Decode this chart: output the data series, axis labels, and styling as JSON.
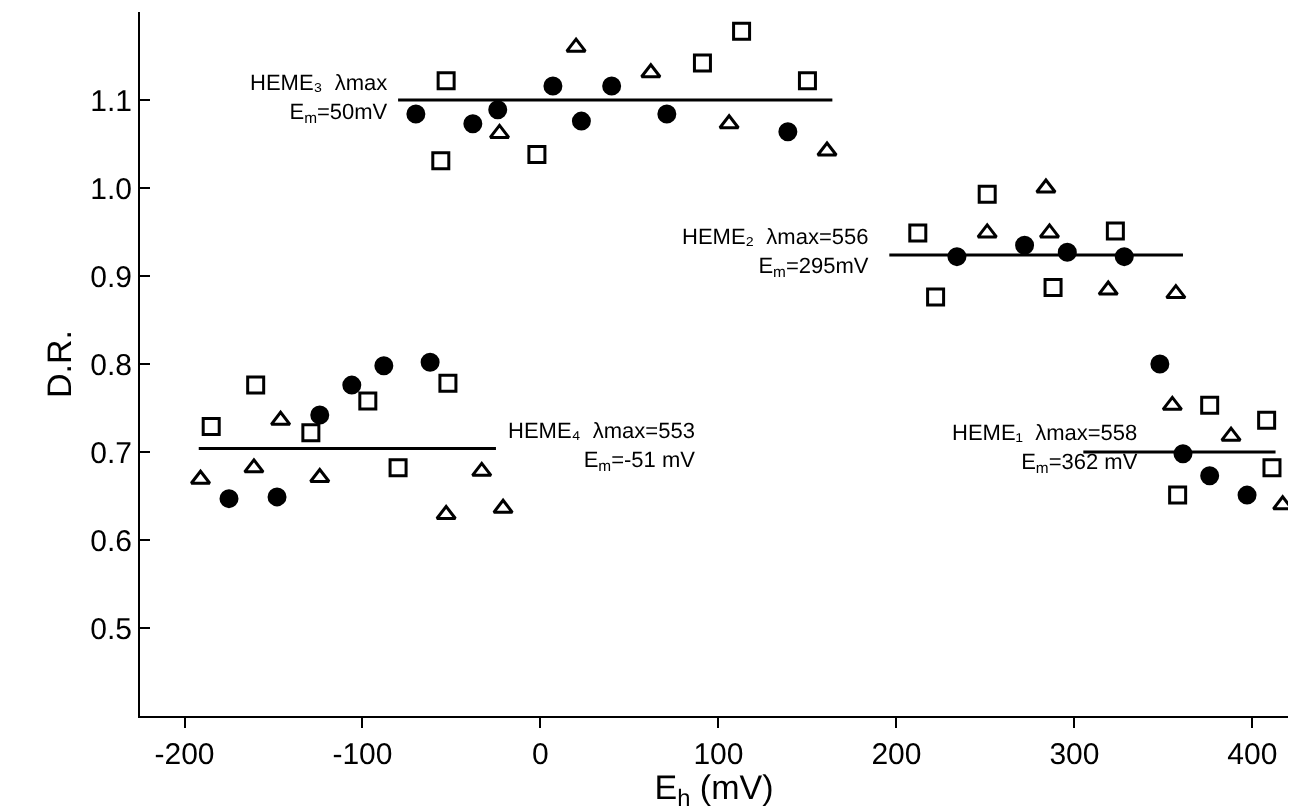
{
  "chart_data": {
    "type": "scatter",
    "xlabel": "E$_{h}$ (mV)",
    "ylabel": "D.R.",
    "xlim": [
      -225,
      420
    ],
    "xticks": [
      -200,
      -100,
      0,
      100,
      200,
      300,
      400
    ],
    "ylim": [
      0.4,
      1.2
    ],
    "yticks": [
      0.5,
      0.6,
      0.7,
      0.8,
      0.9,
      {
        "value": 1,
        "label": "1.0"
      },
      1.1
    ],
    "series": [
      {
        "marker": "circle",
        "color": "#000000",
        "x": [
          -70,
          -38,
          -24,
          7,
          23,
          40,
          71,
          139,
          234,
          272,
          296,
          328,
          348,
          361,
          376,
          397,
          -175,
          -148,
          -124,
          -106,
          -88,
          -62
        ],
        "values": [
          1.084,
          1.073,
          1.089,
          1.116,
          1.076,
          1.116,
          1.084,
          1.064,
          0.922,
          0.935,
          0.927,
          0.922,
          0.8,
          0.698,
          0.673,
          0.651,
          0.647,
          0.649,
          0.742,
          0.776,
          0.798,
          0.802
        ]
      },
      {
        "marker": "square",
        "color": "#000000",
        "x": [
          -53,
          -56,
          -2,
          91,
          113,
          150,
          212,
          222,
          251,
          288,
          323,
          376,
          408,
          411,
          358,
          -185,
          -129,
          -97,
          -80,
          -160,
          -52
        ],
        "values": [
          1.122,
          1.031,
          1.038,
          1.142,
          1.178,
          1.122,
          0.949,
          0.876,
          0.993,
          0.887,
          0.951,
          0.753,
          0.736,
          0.682,
          0.651,
          0.729,
          0.722,
          0.758,
          0.682,
          0.776,
          0.778
        ]
      },
      {
        "marker": "triangle",
        "color": "#000000",
        "x": [
          -23,
          20,
          62,
          106,
          161,
          251,
          284,
          286,
          319,
          357,
          355,
          388,
          417,
          -191,
          -161,
          -146,
          -124,
          -53,
          -33,
          -21
        ],
        "values": [
          1.062,
          1.16,
          1.131,
          1.073,
          1.042,
          0.949,
          1.0,
          0.949,
          0.884,
          0.88,
          0.753,
          0.718,
          0.64,
          0.669,
          0.682,
          0.736,
          0.671,
          0.629,
          0.678,
          0.636
        ]
      },
      {
        "type": "line",
        "marker": "none",
        "color": "#000000",
        "x": [
          -80,
          164
        ],
        "values": [
          1.1,
          1.1
        ]
      },
      {
        "type": "line",
        "marker": "none",
        "color": "#000000",
        "x": [
          196,
          361
        ],
        "values": [
          0.924,
          0.924
        ]
      },
      {
        "type": "line",
        "marker": "none",
        "color": "#000000",
        "x": [
          -192,
          -25
        ],
        "values": [
          0.704,
          0.704
        ]
      },
      {
        "type": "line",
        "marker": "none",
        "color": "#000000",
        "x": [
          305,
          413
        ],
        "values": [
          0.7,
          0.7
        ]
      }
    ],
    "annotations": [
      "HEME₃  λmax\nE$_{m}$=50mV",
      "HEME₂  λmax=556\nE$_{m}$=295mV",
      "HEME₄  λmax=553\nE$_{m}$=-51 mV",
      "HEME₁  λmax=558\nE$_{m}$=362 mV"
    ]
  }
}
